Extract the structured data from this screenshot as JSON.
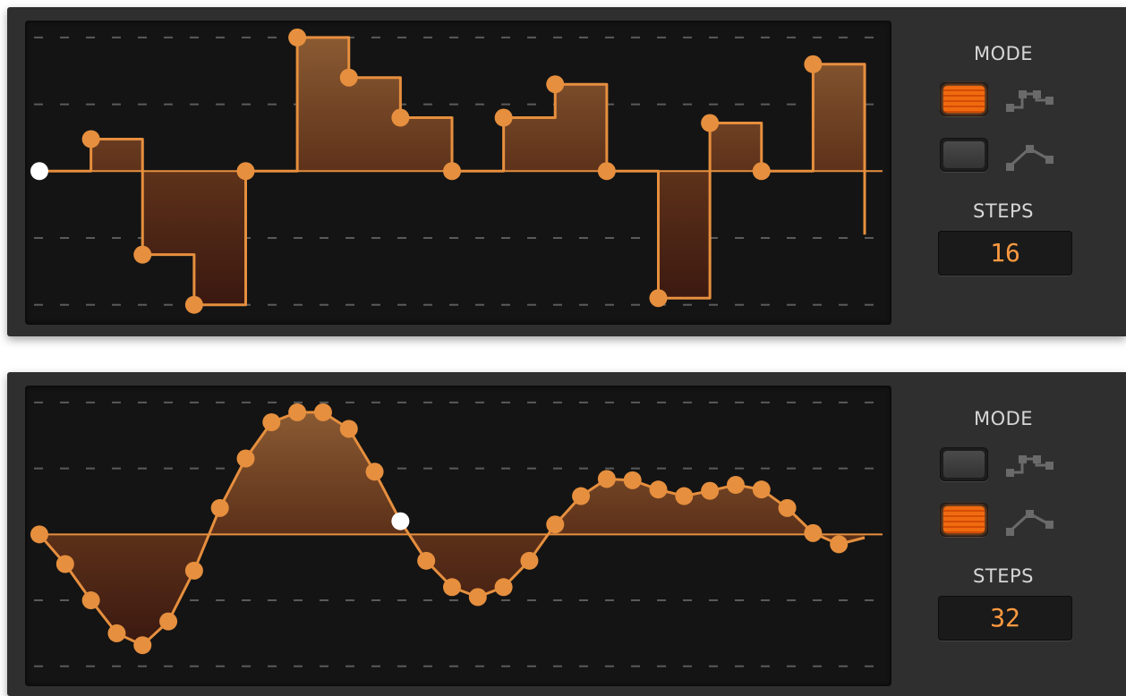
{
  "colors": {
    "accent": "#e68f3e",
    "cursor": "#ffffff",
    "steps_text": "#ff9a40",
    "label_text": "#d6d6d6",
    "panel_bg": "#2f2f2f",
    "screen_bg": "#141414",
    "grid": "#5a5a5a"
  },
  "panels": [
    {
      "mode_label": "MODE",
      "steps_label": "STEPS",
      "steps_value": "16",
      "active_mode": "step",
      "modes": [
        {
          "icon": "step-mode-icon"
        },
        {
          "icon": "smooth-mode-icon"
        }
      ],
      "values": [
        0,
        0.48,
        -1.25,
        -2.0,
        0,
        2.0,
        1.4,
        0.8,
        0,
        0.8,
        1.3,
        0,
        -1.9,
        0.72,
        0,
        1.6,
        -0.95
      ],
      "cursor_index": 0
    },
    {
      "mode_label": "MODE",
      "steps_label": "STEPS",
      "steps_value": "32",
      "active_mode": "smooth",
      "modes": [
        {
          "icon": "step-mode-icon"
        },
        {
          "icon": "smooth-mode-icon"
        }
      ],
      "values": [
        0,
        -0.45,
        -1.0,
        -1.5,
        -1.68,
        -1.32,
        -0.55,
        0.4,
        1.15,
        1.7,
        1.85,
        1.85,
        1.6,
        0.95,
        0.2,
        -0.4,
        -0.8,
        -0.95,
        -0.8,
        -0.4,
        0.15,
        0.58,
        0.84,
        0.82,
        0.68,
        0.58,
        0.66,
        0.75,
        0.68,
        0.4,
        0.02,
        -0.15,
        -0.05
      ],
      "cursor_index": 14
    }
  ]
}
